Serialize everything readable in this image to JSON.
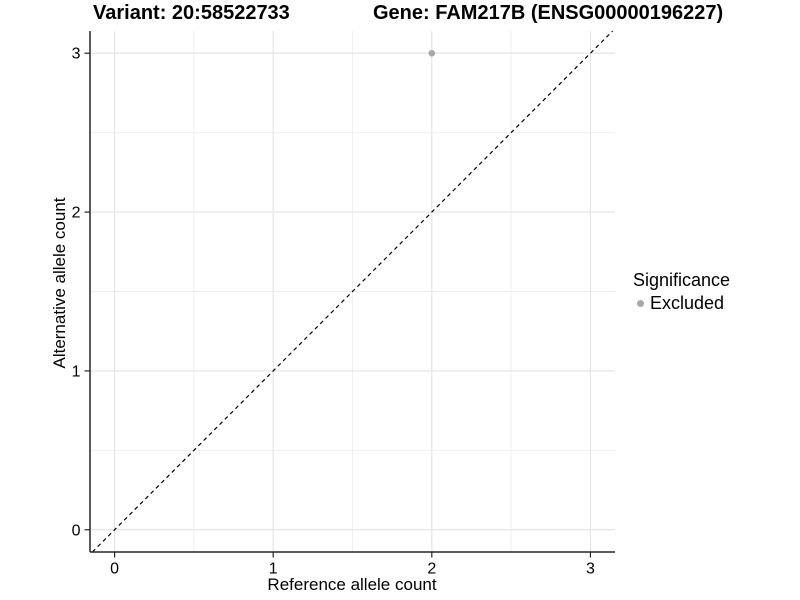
{
  "titles": {
    "variant": "Variant: 20:58522733",
    "gene": "Gene: FAM217B (ENSG00000196227)"
  },
  "axes": {
    "x_label": "Reference allele count",
    "y_label": "Alternative allele count"
  },
  "legend": {
    "title": "Significance",
    "items": [
      {
        "label": "Excluded",
        "marker": "circle",
        "color": "#a8a8a8"
      }
    ]
  },
  "colors": {
    "background": "#ffffff",
    "grid_major": "#e5e5e5",
    "grid_minor": "#f0f0f0",
    "axis_line": "#262626",
    "tick_mark": "#262626",
    "tick_label": "#000000",
    "reference_line": "#000000",
    "point": "#a8a8a8",
    "text": "#000000"
  },
  "chart_data": {
    "type": "scatter",
    "title_left": "Variant: 20:58522733",
    "title_right": "Gene: FAM217B (ENSG00000196227)",
    "xlabel": "Reference allele count",
    "ylabel": "Alternative allele count",
    "xlim": [
      -0.155,
      3.155
    ],
    "ylim": [
      -0.14,
      3.14
    ],
    "x_ticks": [
      0,
      1,
      2,
      3
    ],
    "y_ticks": [
      0,
      1,
      2,
      3
    ],
    "x_minor_ticks": [
      0.5,
      1.5,
      2.5
    ],
    "y_minor_ticks": [
      0.5,
      1.5,
      2.5
    ],
    "grid": true,
    "legend_position": "right",
    "legend_title": "Significance",
    "series": [
      {
        "name": "Excluded",
        "color": "#a8a8a8",
        "points": [
          {
            "x": 2,
            "y": 3
          }
        ]
      }
    ],
    "reference_line": {
      "kind": "abline",
      "slope": 1,
      "intercept": 0,
      "style": "dashed",
      "color": "#000000"
    }
  }
}
